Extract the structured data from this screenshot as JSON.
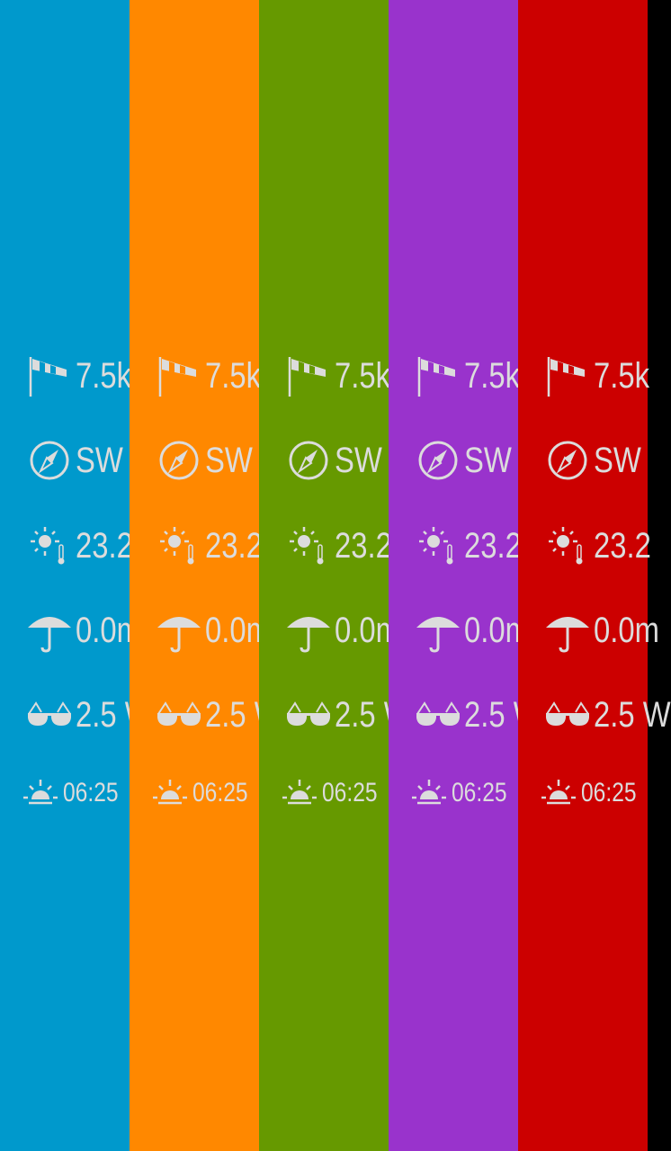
{
  "columns": [
    {
      "color": "#0099CC"
    },
    {
      "color": "#FF8800"
    },
    {
      "color": "#669900"
    },
    {
      "color": "#9933CC"
    },
    {
      "color": "#CC0000"
    }
  ],
  "rows": [
    {
      "icon": "windsock-icon",
      "value": "7.5k"
    },
    {
      "icon": "compass-icon",
      "value": "SW"
    },
    {
      "icon": "sun-thermometer-icon",
      "value": "23.2"
    },
    {
      "icon": "umbrella-icon",
      "value": "0.0m"
    },
    {
      "icon": "sunglasses-icon",
      "value": "2.5 W"
    },
    {
      "icon": "sunrise-icon",
      "value": "06:25"
    }
  ],
  "text_color": "#dcdcdc"
}
